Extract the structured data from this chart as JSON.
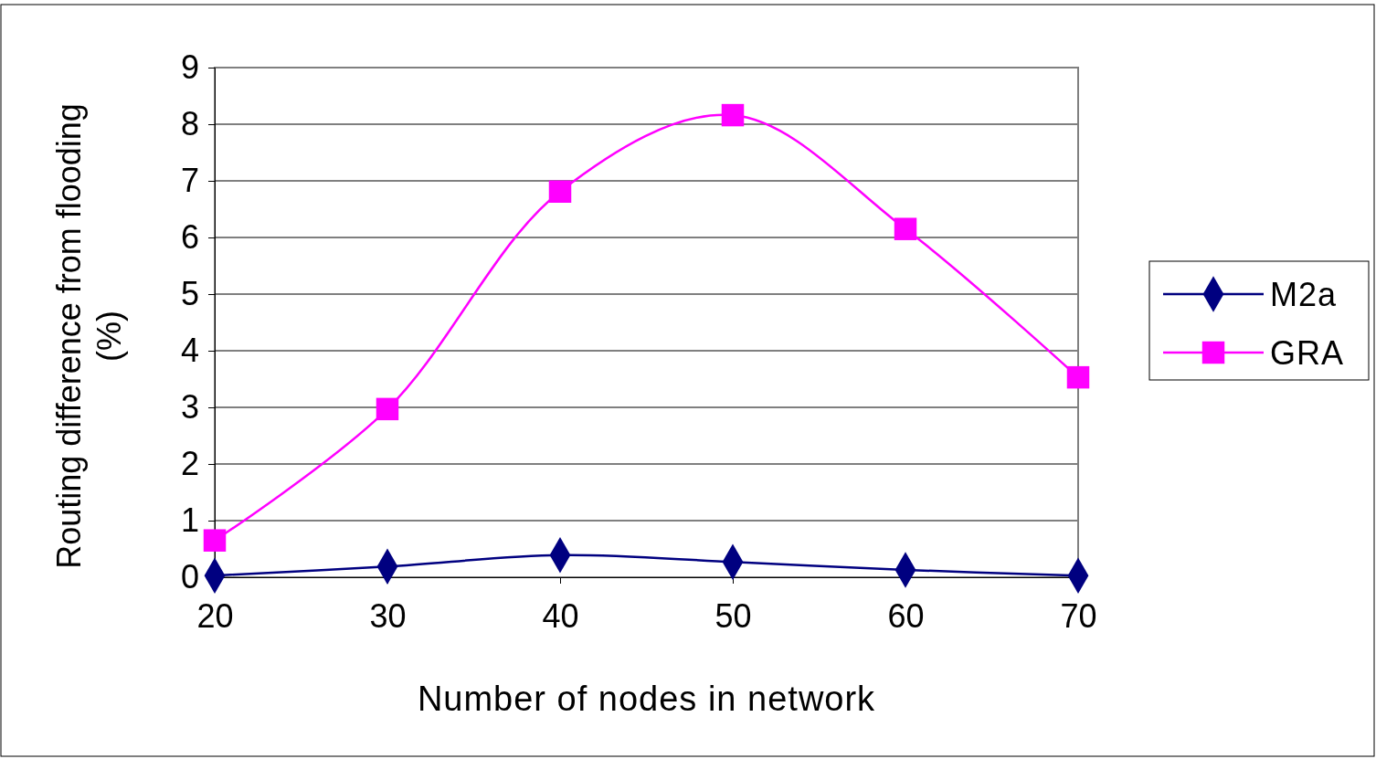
{
  "chart_data": {
    "type": "line",
    "xlabel": "Number of nodes in network",
    "ylabel": "Routing difference from flooding (%)",
    "x": [
      20,
      30,
      40,
      50,
      60,
      70
    ],
    "series": [
      {
        "name": "M2a",
        "color": "#000080",
        "marker": "diamond",
        "values": [
          0.03,
          0.19,
          0.39,
          0.27,
          0.13,
          0.03
        ]
      },
      {
        "name": "GRA",
        "color": "#ff00ff",
        "marker": "square",
        "values": [
          0.65,
          2.97,
          6.81,
          8.16,
          6.15,
          3.53
        ]
      }
    ],
    "xlim": [
      20,
      70
    ],
    "xticks": [
      20,
      30,
      40,
      50,
      60,
      70
    ],
    "ylim": [
      0,
      9
    ],
    "yticks": [
      0,
      1,
      2,
      3,
      4,
      5,
      6,
      7,
      8,
      9
    ],
    "grid": "y",
    "legend": "right",
    "line_style": "solid"
  }
}
